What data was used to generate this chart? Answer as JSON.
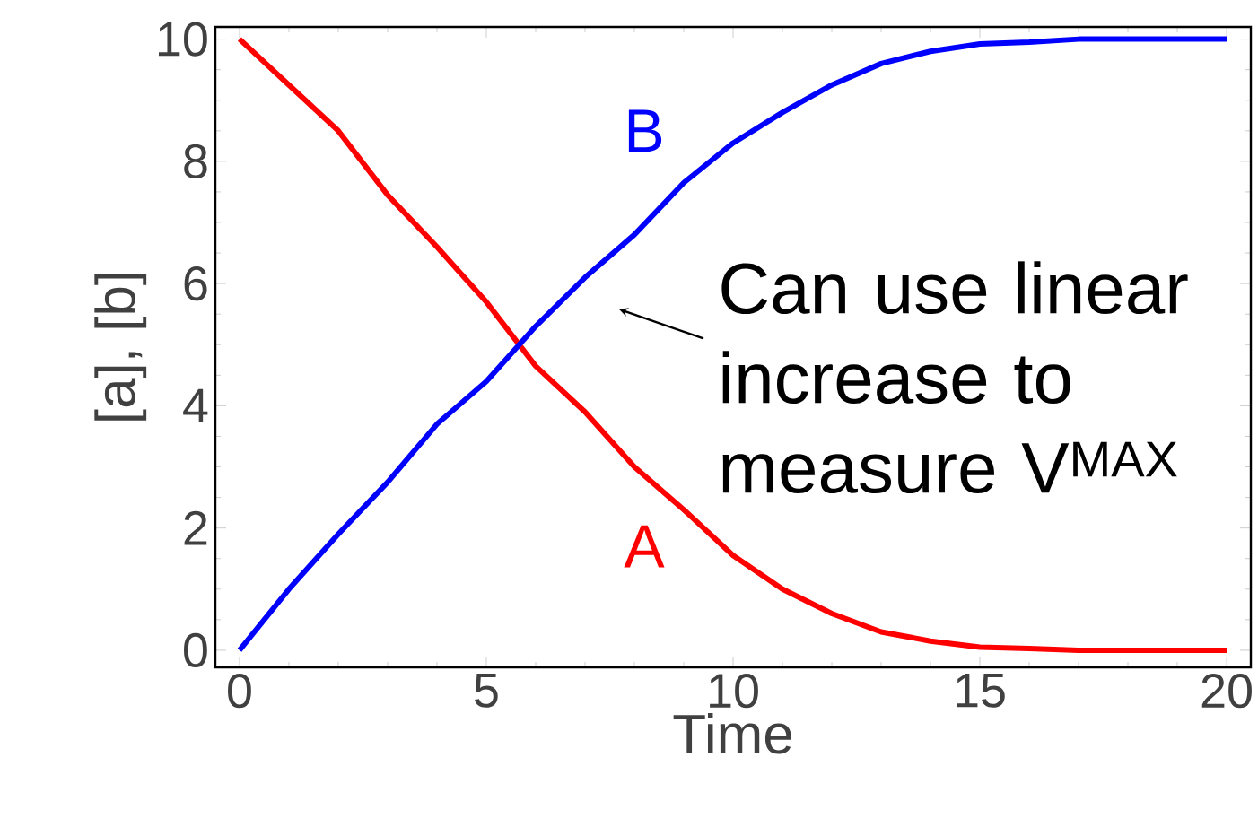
{
  "chart_data": {
    "type": "line",
    "xlabel": "Time",
    "ylabel": "[a], [b]",
    "xlim": [
      -0.49,
      20.49
    ],
    "ylim": [
      -0.28,
      10.2
    ],
    "xticks": [
      0,
      5,
      10,
      15,
      20
    ],
    "yticks": [
      0,
      2,
      4,
      6,
      8,
      10
    ],
    "x": [
      0,
      1,
      2,
      3,
      4,
      5,
      6,
      7,
      8,
      9,
      10,
      11,
      12,
      13,
      14,
      15,
      16,
      17,
      20
    ],
    "series": [
      {
        "name": "A",
        "color": "#ff0000",
        "values": [
          10,
          9.25,
          8.5,
          7.45,
          6.6,
          5.7,
          4.65,
          3.9,
          3.0,
          2.3,
          1.55,
          1.0,
          0.6,
          0.3,
          0.15,
          0.05,
          0.03,
          0,
          0
        ]
      },
      {
        "name": "B",
        "color": "#0000ff",
        "values": [
          0,
          1.0,
          1.9,
          2.75,
          3.7,
          4.4,
          5.3,
          6.1,
          6.8,
          7.65,
          8.3,
          8.8,
          9.25,
          9.6,
          9.8,
          9.92,
          9.95,
          10,
          10
        ]
      }
    ],
    "annotations": [
      "Can use linear increase to measure V$^{MAX}$"
    ]
  }
}
